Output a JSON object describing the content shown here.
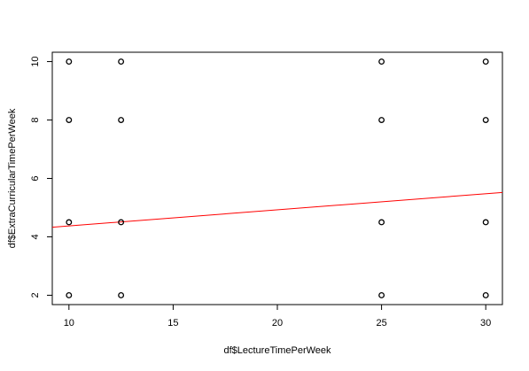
{
  "chart_data": {
    "type": "scatter",
    "title": "",
    "xlabel": "df$LectureTimePerWeek",
    "ylabel": "df$ExtraCurricularTimePerWeek",
    "xlim": [
      9.2,
      30.8
    ],
    "ylim": [
      1.68,
      10.32
    ],
    "x_ticks": [
      10,
      15,
      20,
      25,
      30
    ],
    "y_ticks": [
      2,
      4,
      6,
      8,
      10
    ],
    "grid": false,
    "legend": "none",
    "point_color": "#000000",
    "line_color": "#ff0000",
    "points": [
      {
        "x": 10,
        "y": 10
      },
      {
        "x": 10,
        "y": 8
      },
      {
        "x": 10,
        "y": 4.5
      },
      {
        "x": 10,
        "y": 2
      },
      {
        "x": 12.5,
        "y": 10
      },
      {
        "x": 12.5,
        "y": 8
      },
      {
        "x": 12.5,
        "y": 4.5
      },
      {
        "x": 12.5,
        "y": 2
      },
      {
        "x": 25,
        "y": 10
      },
      {
        "x": 25,
        "y": 8
      },
      {
        "x": 25,
        "y": 4.5
      },
      {
        "x": 25,
        "y": 2
      },
      {
        "x": 30,
        "y": 10
      },
      {
        "x": 30,
        "y": 8
      },
      {
        "x": 30,
        "y": 4.5
      },
      {
        "x": 30,
        "y": 2
      }
    ],
    "fit_line": {
      "x": [
        9.2,
        30.8
      ],
      "y": [
        4.33,
        5.52
      ]
    }
  }
}
